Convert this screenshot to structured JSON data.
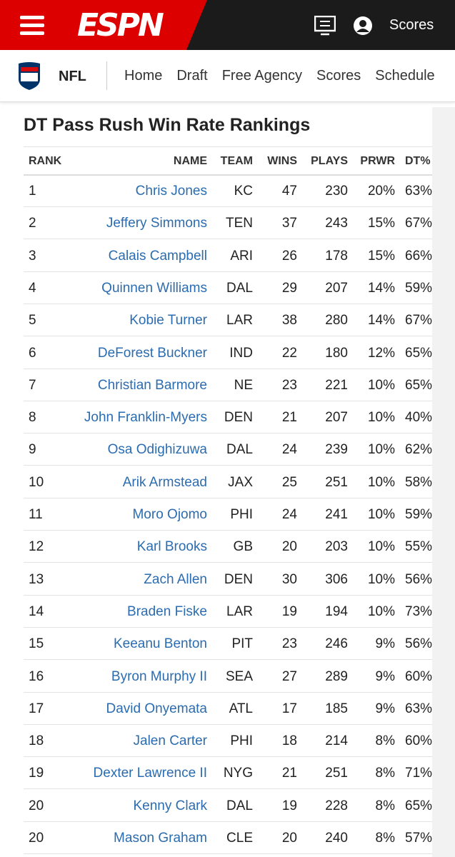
{
  "header": {
    "logo": "ESPN",
    "scores": "Scores"
  },
  "nav": {
    "league": "NFL",
    "links": [
      "Home",
      "Draft",
      "Free Agency",
      "Scores",
      "Schedule"
    ]
  },
  "table": {
    "title": "DT Pass Rush Win Rate Rankings",
    "columns": [
      "RANK",
      "NAME",
      "TEAM",
      "WINS",
      "PLAYS",
      "PRWR",
      "DT%"
    ],
    "rows": [
      [
        "1",
        "Chris Jones",
        "KC",
        "47",
        "230",
        "20%",
        "63%"
      ],
      [
        "2",
        "Jeffery Simmons",
        "TEN",
        "37",
        "243",
        "15%",
        "67%"
      ],
      [
        "3",
        "Calais Campbell",
        "ARI",
        "26",
        "178",
        "15%",
        "66%"
      ],
      [
        "4",
        "Quinnen Williams",
        "DAL",
        "29",
        "207",
        "14%",
        "59%"
      ],
      [
        "5",
        "Kobie Turner",
        "LAR",
        "38",
        "280",
        "14%",
        "67%"
      ],
      [
        "6",
        "DeForest Buckner",
        "IND",
        "22",
        "180",
        "12%",
        "65%"
      ],
      [
        "7",
        "Christian Barmore",
        "NE",
        "23",
        "221",
        "10%",
        "65%"
      ],
      [
        "8",
        "John Franklin-Myers",
        "DEN",
        "21",
        "207",
        "10%",
        "40%"
      ],
      [
        "9",
        "Osa Odighizuwa",
        "DAL",
        "24",
        "239",
        "10%",
        "62%"
      ],
      [
        "10",
        "Arik Armstead",
        "JAX",
        "25",
        "251",
        "10%",
        "58%"
      ],
      [
        "11",
        "Moro Ojomo",
        "PHI",
        "24",
        "241",
        "10%",
        "59%"
      ],
      [
        "12",
        "Karl Brooks",
        "GB",
        "20",
        "203",
        "10%",
        "55%"
      ],
      [
        "13",
        "Zach Allen",
        "DEN",
        "30",
        "306",
        "10%",
        "56%"
      ],
      [
        "14",
        "Braden Fiske",
        "LAR",
        "19",
        "194",
        "10%",
        "73%"
      ],
      [
        "15",
        "Keeanu Benton",
        "PIT",
        "23",
        "246",
        "9%",
        "56%"
      ],
      [
        "16",
        "Byron Murphy II",
        "SEA",
        "27",
        "289",
        "9%",
        "60%"
      ],
      [
        "17",
        "David Onyemata",
        "ATL",
        "17",
        "185",
        "9%",
        "63%"
      ],
      [
        "18",
        "Jalen Carter",
        "PHI",
        "18",
        "214",
        "8%",
        "60%"
      ],
      [
        "19",
        "Dexter Lawrence II",
        "NYG",
        "21",
        "251",
        "8%",
        "71%"
      ],
      [
        "20",
        "Kenny Clark",
        "DAL",
        "19",
        "228",
        "8%",
        "65%"
      ],
      [
        "20",
        "Mason Graham",
        "CLE",
        "20",
        "240",
        "8%",
        "57%"
      ]
    ]
  }
}
